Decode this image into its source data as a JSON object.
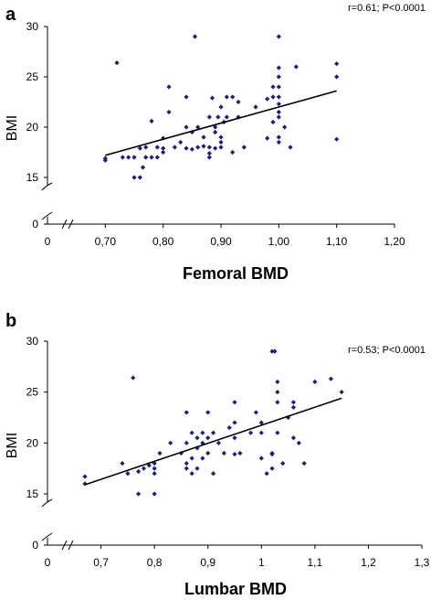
{
  "chart_data": [
    {
      "panel_label": "a",
      "type": "scatter",
      "annotation": "r=0.61; P<0.0001",
      "xlabel": "Femoral BMD",
      "ylabel": "BMI",
      "x_origin_label": "0",
      "xlim": [
        0.6,
        1.2
      ],
      "x_ticks": [
        0.7,
        0.8,
        0.9,
        1.0,
        1.1,
        1.2
      ],
      "x_tick_labels": [
        "0,70",
        "0,80",
        "0,90",
        "1,00",
        "1,10",
        "1,20"
      ],
      "y_ticks": [
        15,
        20,
        25,
        30
      ],
      "y_tick_labels": [
        "15",
        "20",
        "25",
        "30"
      ],
      "y_zero_label": "0",
      "ylim_upper": [
        13,
        30
      ],
      "axis_break": true,
      "trend_line": {
        "x": [
          0.7,
          1.1
        ],
        "y": [
          17.2,
          23.6
        ]
      },
      "points": [
        [
          0.7,
          16.7
        ],
        [
          0.7,
          16.9
        ],
        [
          0.72,
          26.4
        ],
        [
          0.73,
          17.0
        ],
        [
          0.74,
          17.0
        ],
        [
          0.75,
          17.0
        ],
        [
          0.75,
          15.0
        ],
        [
          0.76,
          17.9
        ],
        [
          0.76,
          15.0
        ],
        [
          0.765,
          16.0
        ],
        [
          0.77,
          18.0
        ],
        [
          0.77,
          17.0
        ],
        [
          0.78,
          17.0
        ],
        [
          0.78,
          20.6
        ],
        [
          0.79,
          17.0
        ],
        [
          0.79,
          18.0
        ],
        [
          0.8,
          17.9
        ],
        [
          0.8,
          18.9
        ],
        [
          0.8,
          17.5
        ],
        [
          0.81,
          24.0
        ],
        [
          0.81,
          21.5
        ],
        [
          0.82,
          18.0
        ],
        [
          0.83,
          18.5
        ],
        [
          0.84,
          23.0
        ],
        [
          0.84,
          20.0
        ],
        [
          0.84,
          17.9
        ],
        [
          0.85,
          17.8
        ],
        [
          0.85,
          19.5
        ],
        [
          0.855,
          29.0
        ],
        [
          0.86,
          20.0
        ],
        [
          0.86,
          18.0
        ],
        [
          0.87,
          18.1
        ],
        [
          0.87,
          19.0
        ],
        [
          0.88,
          18.0
        ],
        [
          0.88,
          17.4
        ],
        [
          0.88,
          17.0
        ],
        [
          0.88,
          21.0
        ],
        [
          0.885,
          22.9
        ],
        [
          0.89,
          20.0
        ],
        [
          0.89,
          19.5
        ],
        [
          0.89,
          17.9
        ],
        [
          0.895,
          21.0
        ],
        [
          0.9,
          19.0
        ],
        [
          0.9,
          18.5
        ],
        [
          0.9,
          22.0
        ],
        [
          0.9,
          18.0
        ],
        [
          0.905,
          20.5
        ],
        [
          0.91,
          23.0
        ],
        [
          0.91,
          21.0
        ],
        [
          0.92,
          23.0
        ],
        [
          0.92,
          17.5
        ],
        [
          0.93,
          21.0
        ],
        [
          0.93,
          22.5
        ],
        [
          0.94,
          18.0
        ],
        [
          0.96,
          22.0
        ],
        [
          0.98,
          18.9
        ],
        [
          0.98,
          22.8
        ],
        [
          0.99,
          24.0
        ],
        [
          0.99,
          20.5
        ],
        [
          0.99,
          23.0
        ],
        [
          1.0,
          29.0
        ],
        [
          1.0,
          25.9
        ],
        [
          1.0,
          25.0
        ],
        [
          1.0,
          24.0
        ],
        [
          1.0,
          23.0
        ],
        [
          1.0,
          22.3
        ],
        [
          1.0,
          21.5
        ],
        [
          1.0,
          21.0
        ],
        [
          1.0,
          19.0
        ],
        [
          1.0,
          18.5
        ],
        [
          1.01,
          20.0
        ],
        [
          1.02,
          18.0
        ],
        [
          1.03,
          26.0
        ],
        [
          1.1,
          26.3
        ],
        [
          1.1,
          25.0
        ],
        [
          1.1,
          18.8
        ]
      ]
    },
    {
      "panel_label": "b",
      "type": "scatter",
      "annotation": "r=0.53; P<0.0001",
      "xlabel": "Lumbar BMD",
      "ylabel": "BMI",
      "x_origin_label": "0",
      "xlim": [
        0.6,
        1.3
      ],
      "x_ticks": [
        0.7,
        0.8,
        0.9,
        1.0,
        1.1,
        1.2,
        1.3
      ],
      "x_tick_labels": [
        "0,7",
        "0,8",
        "0,9",
        "1",
        "1,1",
        "1,2",
        "1,3"
      ],
      "y_ticks": [
        15,
        20,
        25,
        30
      ],
      "y_tick_labels": [
        "15",
        "20",
        "25",
        "30"
      ],
      "y_zero_label": "0",
      "ylim_upper": [
        13,
        30
      ],
      "axis_break": true,
      "trend_line": {
        "x": [
          0.67,
          1.15
        ],
        "y": [
          15.9,
          24.4
        ]
      },
      "points": [
        [
          0.67,
          16.7
        ],
        [
          0.67,
          16.0
        ],
        [
          0.74,
          18.0
        ],
        [
          0.75,
          17.0
        ],
        [
          0.76,
          26.4
        ],
        [
          0.77,
          17.2
        ],
        [
          0.77,
          15.0
        ],
        [
          0.78,
          17.5
        ],
        [
          0.79,
          17.8
        ],
        [
          0.8,
          17.5
        ],
        [
          0.8,
          18.0
        ],
        [
          0.8,
          17.0
        ],
        [
          0.8,
          15.0
        ],
        [
          0.81,
          19.0
        ],
        [
          0.83,
          20.0
        ],
        [
          0.85,
          19.0
        ],
        [
          0.86,
          17.5
        ],
        [
          0.86,
          18.0
        ],
        [
          0.86,
          20.0
        ],
        [
          0.86,
          23.0
        ],
        [
          0.87,
          18.5
        ],
        [
          0.87,
          17.0
        ],
        [
          0.87,
          21.0
        ],
        [
          0.88,
          19.5
        ],
        [
          0.88,
          20.5
        ],
        [
          0.88,
          17.5
        ],
        [
          0.89,
          18.5
        ],
        [
          0.89,
          20.0
        ],
        [
          0.89,
          21.0
        ],
        [
          0.9,
          19.0
        ],
        [
          0.9,
          20.5
        ],
        [
          0.9,
          23.0
        ],
        [
          0.91,
          17.0
        ],
        [
          0.91,
          21.0
        ],
        [
          0.92,
          20.0
        ],
        [
          0.93,
          19.0
        ],
        [
          0.94,
          21.5
        ],
        [
          0.95,
          22.0
        ],
        [
          0.95,
          20.5
        ],
        [
          0.95,
          18.9
        ],
        [
          0.95,
          24.0
        ],
        [
          0.96,
          19.0
        ],
        [
          0.98,
          21.0
        ],
        [
          0.99,
          23.0
        ],
        [
          1.0,
          18.5
        ],
        [
          1.0,
          21.0
        ],
        [
          1.0,
          22.0
        ],
        [
          1.01,
          17.0
        ],
        [
          1.02,
          18.9
        ],
        [
          1.02,
          17.5
        ],
        [
          1.02,
          19.0
        ],
        [
          1.02,
          29.0
        ],
        [
          1.025,
          29.0
        ],
        [
          1.03,
          25.0
        ],
        [
          1.03,
          26.0
        ],
        [
          1.03,
          24.0
        ],
        [
          1.03,
          21.0
        ],
        [
          1.04,
          18.0
        ],
        [
          1.05,
          22.5
        ],
        [
          1.06,
          23.5
        ],
        [
          1.06,
          20.5
        ],
        [
          1.06,
          24.0
        ],
        [
          1.07,
          20.0
        ],
        [
          1.08,
          18.0
        ],
        [
          1.1,
          26.0
        ],
        [
          1.13,
          26.3
        ],
        [
          1.15,
          25.0
        ]
      ]
    }
  ]
}
